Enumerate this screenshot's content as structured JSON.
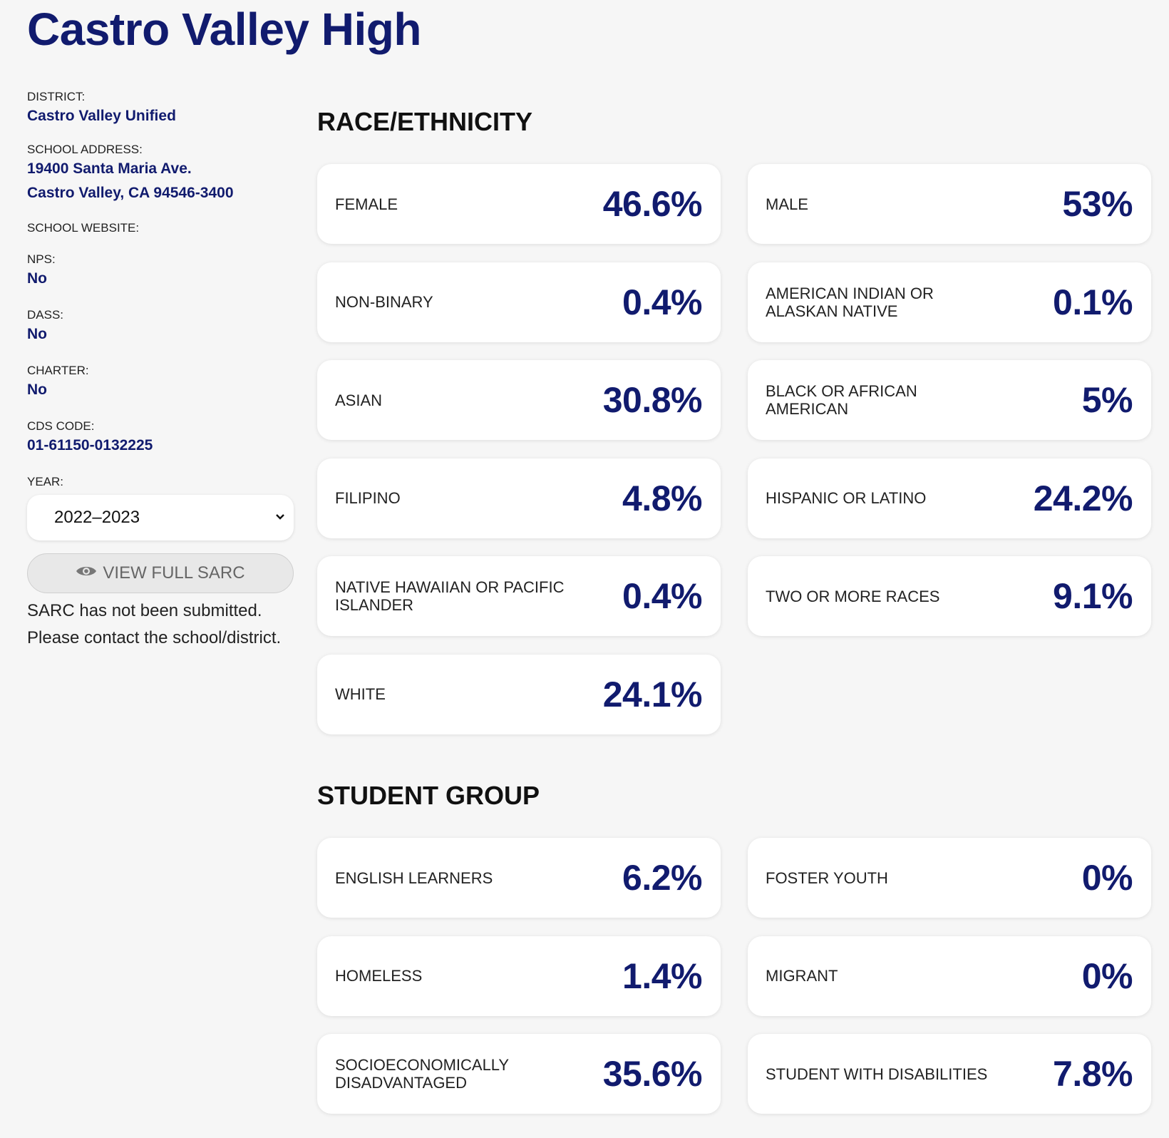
{
  "school_name": "Castro Valley High",
  "info": {
    "district_label": "DISTRICT:",
    "district_value": "Castro Valley Unified",
    "address_label": "SCHOOL ADDRESS:",
    "address_line1": "19400 Santa Maria Ave.",
    "address_line2": "Castro Valley, CA 94546-3400",
    "website_label": "SCHOOL WEBSITE:",
    "nps_label": "NPS:",
    "nps_value": "No",
    "dass_label": "DASS:",
    "dass_value": "No",
    "charter_label": "CHARTER:",
    "charter_value": "No",
    "cds_label": "CDS CODE:",
    "cds_value": "01-61150-0132225",
    "year_label": "YEAR:",
    "year_selected": "2022–2023",
    "view_sarc_label": "VIEW FULL SARC",
    "sarc_note_line1": "SARC has not been submitted.",
    "sarc_note_line2": "Please contact the school/district."
  },
  "race": {
    "title": "RACE/ETHNICITY",
    "cards": [
      {
        "label": "FEMALE",
        "value": "46.6%"
      },
      {
        "label": "MALE",
        "value": "53%"
      },
      {
        "label": "NON-BINARY",
        "value": "0.4%"
      },
      {
        "label": "AMERICAN INDIAN OR ALASKAN NATIVE",
        "value": "0.1%"
      },
      {
        "label": "ASIAN",
        "value": "30.8%"
      },
      {
        "label": "BLACK OR AFRICAN AMERICAN",
        "value": "5%"
      },
      {
        "label": "FILIPINO",
        "value": "4.8%"
      },
      {
        "label": "HISPANIC OR LATINO",
        "value": "24.2%"
      },
      {
        "label": "NATIVE HAWAIIAN OR PACIFIC ISLANDER",
        "value": "0.4%"
      },
      {
        "label": "TWO OR MORE RACES",
        "value": "9.1%"
      },
      {
        "label": "WHITE",
        "value": "24.1%"
      }
    ]
  },
  "groups": {
    "title": "STUDENT GROUP",
    "cards": [
      {
        "label": "ENGLISH LEARNERS",
        "value": "6.2%"
      },
      {
        "label": "FOSTER YOUTH",
        "value": "0%"
      },
      {
        "label": "HOMELESS",
        "value": "1.4%"
      },
      {
        "label": "MIGRANT",
        "value": "0%"
      },
      {
        "label": "SOCIOECONOMICALLY DISADVANTAGED",
        "value": "35.6%"
      },
      {
        "label": "STUDENT WITH DISABILITIES",
        "value": "7.8%"
      }
    ]
  }
}
